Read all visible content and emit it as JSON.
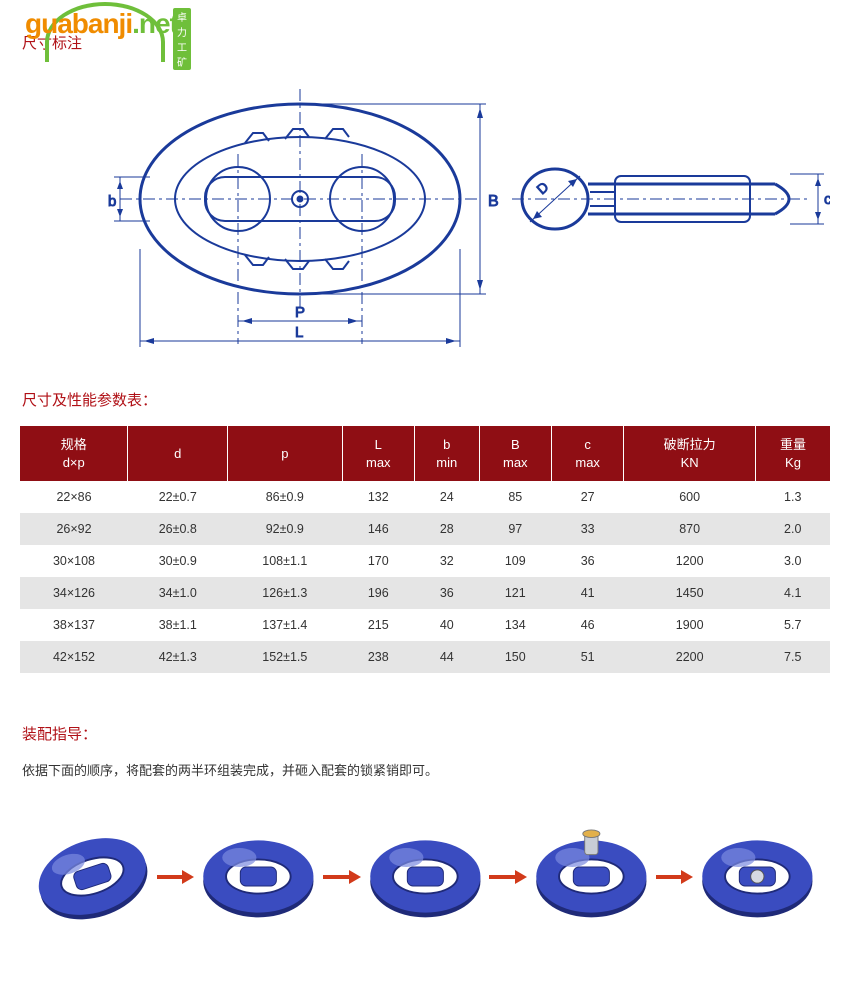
{
  "watermark": {
    "text": "guabanji",
    "suffix": ".net",
    "badge": "卓力工矿"
  },
  "headings": {
    "dimensions": "尺寸标注",
    "spec_table": "尺寸及性能参数表：",
    "assembly": "装配指导："
  },
  "diagram": {
    "labels": {
      "b": "b",
      "B": "B",
      "P": "P",
      "L": "L",
      "D": "D",
      "c": "c"
    },
    "stroke": "#1a3a9a",
    "thin": "#1a3a9a"
  },
  "table": {
    "header_bg": "#8f0e14",
    "row_odd_bg": "#ffffff",
    "row_even_bg": "#e5e5e5",
    "columns": [
      {
        "l1": "规格",
        "l2": "d×p"
      },
      {
        "l1": "d",
        "l2": ""
      },
      {
        "l1": "p",
        "l2": ""
      },
      {
        "l1": "L",
        "l2": "max"
      },
      {
        "l1": "b",
        "l2": "min"
      },
      {
        "l1": "B",
        "l2": "max"
      },
      {
        "l1": "c",
        "l2": "max"
      },
      {
        "l1": "破断拉力",
        "l2": "KN"
      },
      {
        "l1": "重量",
        "l2": "Kg"
      }
    ],
    "rows": [
      [
        "22×86",
        "22±0.7",
        "86±0.9",
        "132",
        "24",
        "85",
        "27",
        "600",
        "1.3"
      ],
      [
        "26×92",
        "26±0.8",
        "92±0.9",
        "146",
        "28",
        "97",
        "33",
        "870",
        "2.0"
      ],
      [
        "30×108",
        "30±0.9",
        "108±1.1",
        "170",
        "32",
        "109",
        "36",
        "1200",
        "3.0"
      ],
      [
        "34×126",
        "34±1.0",
        "126±1.3",
        "196",
        "36",
        "121",
        "41",
        "1450",
        "4.1"
      ],
      [
        "38×137",
        "38±1.1",
        "137±1.4",
        "215",
        "40",
        "134",
        "46",
        "1900",
        "5.7"
      ],
      [
        "42×152",
        "42±1.3",
        "152±1.5",
        "238",
        "44",
        "150",
        "51",
        "2200",
        "7.5"
      ]
    ]
  },
  "assembly": {
    "instruction": "依据下面的顺序，将配套的两半环组装完成，并砸入配套的锁紧销即可。",
    "link_fill": "#3a4cc0",
    "link_highlight": "#7a8ae0",
    "link_shadow": "#1f2a78",
    "arrow_color": "#d23a1a",
    "steps": 5
  }
}
